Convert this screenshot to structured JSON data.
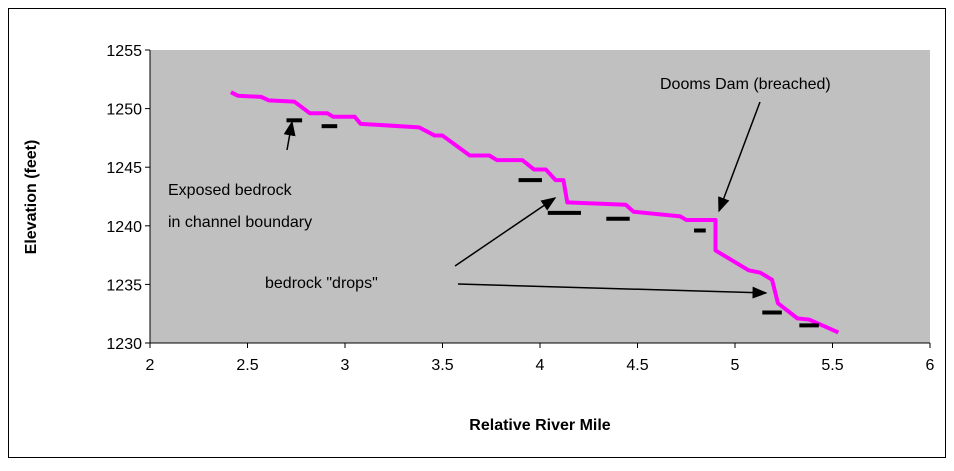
{
  "chart_data": {
    "type": "line",
    "x_label": "Relative River Mile",
    "y_label": "Elevation (feet)",
    "xlim": [
      2,
      6
    ],
    "xticks": [
      2,
      2.5,
      3,
      3.5,
      4,
      4.5,
      5,
      5.5,
      6
    ],
    "ylim": [
      1230,
      1255
    ],
    "yticks": [
      1230,
      1235,
      1240,
      1245,
      1250,
      1255
    ],
    "grid": false,
    "x": [
      2.415,
      2.45,
      2.57,
      2.61,
      2.74,
      2.82,
      2.91,
      2.94,
      3.05,
      3.08,
      3.38,
      3.46,
      3.5,
      3.64,
      3.74,
      3.78,
      3.91,
      3.97,
      4.03,
      4.08,
      4.12,
      4.14,
      4.44,
      4.48,
      4.72,
      4.75,
      4.9,
      4.9,
      5.07,
      5.13,
      5.19,
      5.22,
      5.32,
      5.38,
      5.53
    ],
    "series": [
      {
        "color": "#ff00ff",
        "values": [
          1251.4,
          1251.1,
          1251.0,
          1250.7,
          1250.6,
          1249.6,
          1249.6,
          1249.3,
          1249.3,
          1248.7,
          1248.4,
          1247.7,
          1247.7,
          1246.0,
          1246.0,
          1245.6,
          1245.6,
          1244.8,
          1244.8,
          1243.9,
          1243.9,
          1242.0,
          1241.8,
          1241.2,
          1240.8,
          1240.5,
          1240.5,
          1237.9,
          1236.2,
          1236.0,
          1235.4,
          1233.4,
          1232.1,
          1232.0,
          1230.9
        ]
      }
    ],
    "segment_color": "#000000",
    "segments": [
      {
        "x": [
          2.7,
          2.78
        ],
        "y": 1249.0
      },
      {
        "x": [
          2.88,
          2.96
        ],
        "y": 1248.5
      },
      {
        "x": [
          3.89,
          4.01
        ],
        "y": 1243.9
      },
      {
        "x": [
          4.04,
          4.21
        ],
        "y": 1241.1
      },
      {
        "x": [
          4.34,
          4.46
        ],
        "y": 1240.6
      },
      {
        "x": [
          4.79,
          4.85
        ],
        "y": 1239.6
      },
      {
        "x": [
          5.14,
          5.24
        ],
        "y": 1232.6
      },
      {
        "x": [
          5.33,
          5.43
        ],
        "y": 1231.5
      }
    ],
    "annotations": {
      "bedrock": [
        "Exposed bedrock",
        "in channel boundary"
      ],
      "drops": "bedrock \"drops\"",
      "dam": "Dooms Dam (breached)"
    }
  }
}
